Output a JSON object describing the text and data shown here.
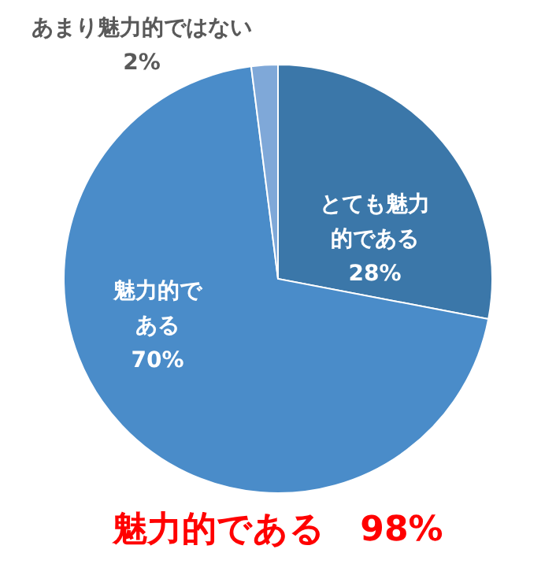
{
  "chart_data": {
    "type": "pie",
    "categories": [
      "とても魅力的である",
      "魅力的である",
      "あまり魅力的ではない"
    ],
    "values": [
      28,
      70,
      2
    ],
    "colors": [
      "#3b77a9",
      "#4a8cc9",
      "#7fa8d8"
    ],
    "value_labels": [
      "28%",
      "70%",
      "2%"
    ],
    "annotations": [
      "魅力的である　98%"
    ]
  }
}
